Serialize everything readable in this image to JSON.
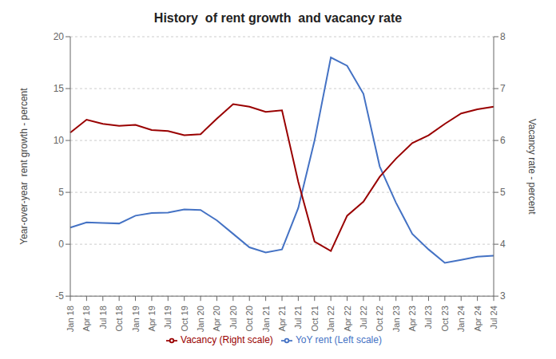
{
  "chart_data": {
    "type": "line",
    "title": "History  of rent growth  and vacancy rate",
    "ylabel": "Year-over-year  rent growth - percent",
    "y2label": "Vacancy rate - percent",
    "categories": [
      "Jan 18",
      "Apr 18",
      "Jul 18",
      "Oct 18",
      "Jan 19",
      "Apr 19",
      "Jul 19",
      "Oct 19",
      "Jan 20",
      "Apr 20",
      "Jul 20",
      "Oct 20",
      "Jan 21",
      "Apr 21",
      "Jul 21",
      "Oct 21",
      "Jan 22",
      "Apr 22",
      "Jul 22",
      "Oct 22",
      "Jan 23",
      "Apr 23",
      "Jul 23",
      "Oct 23",
      "Jan 24",
      "Apr 24",
      "Jul 24"
    ],
    "series": [
      {
        "name": "YoY rent (Left scale)",
        "color": "#4472c4",
        "axis": "y",
        "values": [
          1.6,
          2.1,
          2.05,
          2.0,
          2.75,
          3.0,
          3.05,
          3.35,
          3.3,
          2.3,
          1.0,
          -0.3,
          -0.8,
          -0.5,
          3.5,
          10.0,
          18.0,
          17.2,
          14.5,
          7.5,
          4.0,
          1.0,
          -0.5,
          -1.8,
          -1.5,
          -1.2,
          -1.1
        ]
      },
      {
        "name": "Vacancy (Right scale)",
        "color": "#990000",
        "axis": "y2",
        "values": [
          6.15,
          6.4,
          6.32,
          6.28,
          6.3,
          6.2,
          6.18,
          6.1,
          6.12,
          6.42,
          6.7,
          6.65,
          6.55,
          6.58,
          5.2,
          4.05,
          3.87,
          4.55,
          4.82,
          5.3,
          5.65,
          5.95,
          6.1,
          6.32,
          6.52,
          6.6,
          6.65
        ]
      }
    ],
    "ylim": [
      -5,
      20
    ],
    "yticks": [
      -5,
      0,
      5,
      10,
      15,
      20
    ],
    "y2lim": [
      3,
      8
    ],
    "y2ticks": [
      3,
      4,
      5,
      6,
      7,
      8
    ],
    "grid": true,
    "legend": "bottom"
  }
}
